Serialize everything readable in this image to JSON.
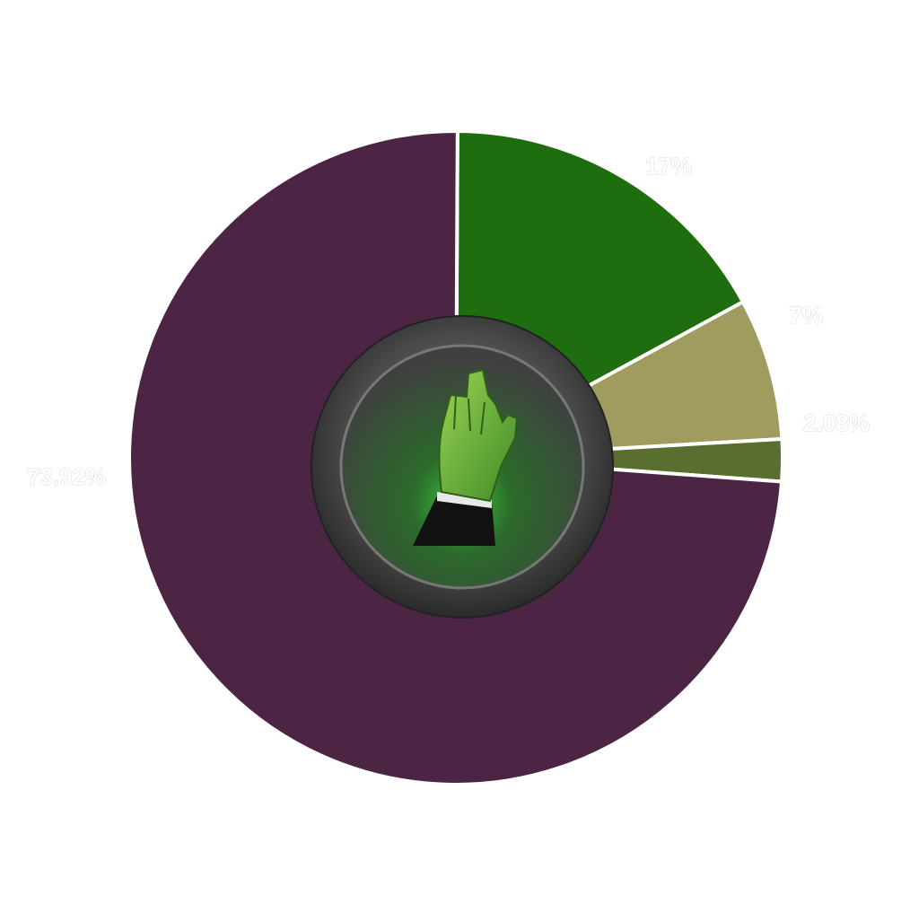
{
  "chart_data": {
    "type": "pie",
    "title": "",
    "slices": [
      {
        "label": "17%",
        "value": 17,
        "color": "#1e6e10"
      },
      {
        "label": "7%",
        "value": 7,
        "color": "#a09c60"
      },
      {
        "label": "2.08%",
        "value": 2.08,
        "color": "#5a6e30"
      },
      {
        "label": "73.92%",
        "value": 73.92,
        "color": "#4c2545"
      }
    ],
    "legend": "none",
    "center_icon": "green-vulcan-salute-hand-icon"
  }
}
